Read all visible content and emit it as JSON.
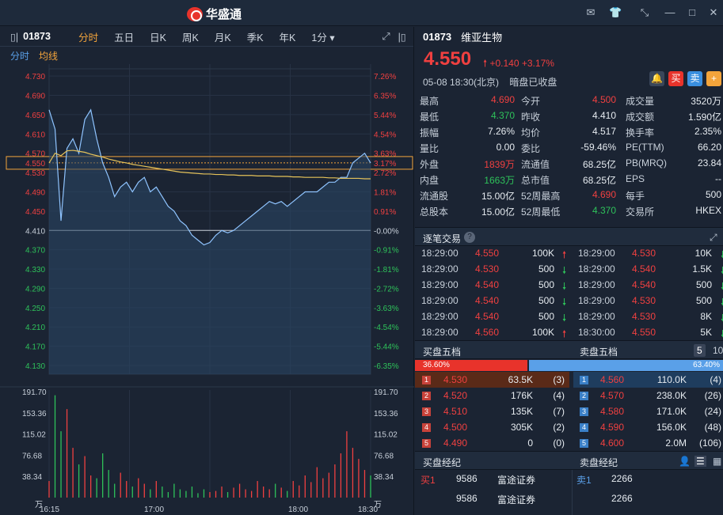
{
  "window": {
    "brand": "华盛通"
  },
  "toolbar": {
    "symbol": "01873",
    "tabs": [
      "分时",
      "五日",
      "日K",
      "周K",
      "月K",
      "季K",
      "年K"
    ],
    "interval": "1分"
  },
  "subtabs": [
    "分时",
    "均线"
  ],
  "stock": {
    "code": "01873",
    "name": "维亚生物",
    "price": "4.550",
    "change": "+0.140",
    "change_pct": "+3.17%",
    "time": "05-08 18:30(北京)",
    "status": "暗盘已收盘",
    "buy_label": "买",
    "sell_label": "卖"
  },
  "stats": [
    [
      "最高",
      "4.690",
      "r",
      "今开",
      "4.500",
      "r",
      "成交量",
      "3520万",
      "w"
    ],
    [
      "最低",
      "4.370",
      "g",
      "昨收",
      "4.410",
      "w",
      "成交额",
      "1.590亿",
      "w"
    ],
    [
      "振幅",
      "7.26%",
      "w",
      "均价",
      "4.517",
      "w",
      "换手率",
      "2.35%",
      "w"
    ],
    [
      "量比",
      "0.00",
      "w",
      "委比",
      "-59.46%",
      "w",
      "PE(TTM)",
      "66.20",
      "w"
    ],
    [
      "外盘",
      "1839万",
      "r",
      "流通值",
      "68.25亿",
      "w",
      "PB(MRQ)",
      "23.84",
      "w"
    ],
    [
      "内盘",
      "1663万",
      "g",
      "总市值",
      "68.25亿",
      "w",
      "EPS",
      "--",
      "w"
    ],
    [
      "流通股",
      "15.00亿",
      "w",
      "52周最高",
      "4.690",
      "r",
      "每手",
      "500",
      "w"
    ],
    [
      "总股本",
      "15.00亿",
      "w",
      "52周最低",
      "4.370",
      "g",
      "交易所",
      "HKEX",
      "w"
    ]
  ],
  "ticks_title": "逐笔交易",
  "ticks": [
    [
      "18:29:00",
      "4.550",
      "100K",
      "up",
      "18:29:00",
      "4.530",
      "10K",
      "down"
    ],
    [
      "18:29:00",
      "4.530",
      "500",
      "down",
      "18:29:00",
      "4.540",
      "1.5K",
      "down"
    ],
    [
      "18:29:00",
      "4.540",
      "500",
      "down",
      "18:29:00",
      "4.540",
      "500",
      "down"
    ],
    [
      "18:29:00",
      "4.540",
      "500",
      "down",
      "18:29:00",
      "4.530",
      "500",
      "down"
    ],
    [
      "18:29:00",
      "4.540",
      "500",
      "down",
      "18:29:00",
      "4.530",
      "8K",
      "down"
    ],
    [
      "18:29:00",
      "4.560",
      "100K",
      "up",
      "18:30:00",
      "4.550",
      "5K",
      "down"
    ]
  ],
  "book": {
    "buy_title": "买盘五档",
    "sell_title": "卖盘五档",
    "depth": "5",
    "depth2": "10",
    "buy_pct": "36.60%",
    "sell_pct": "63.40%",
    "buy_ratio": 0.366,
    "bids": [
      [
        "1",
        "4.530",
        "63.5K",
        "(3)"
      ],
      [
        "2",
        "4.520",
        "176K",
        "(4)"
      ],
      [
        "3",
        "4.510",
        "135K",
        "(7)"
      ],
      [
        "4",
        "4.500",
        "305K",
        "(2)"
      ],
      [
        "5",
        "4.490",
        "0",
        "(0)"
      ]
    ],
    "asks": [
      [
        "1",
        "4.560",
        "110.0K",
        "(4)"
      ],
      [
        "2",
        "4.570",
        "238.0K",
        "(26)"
      ],
      [
        "3",
        "4.580",
        "171.0K",
        "(24)"
      ],
      [
        "4",
        "4.590",
        "156.0K",
        "(48)"
      ],
      [
        "5",
        "4.600",
        "2.0M",
        "(106)"
      ]
    ]
  },
  "brokers": {
    "buy_title": "买盘经纪",
    "sell_title": "卖盘经纪",
    "buy_label": "买1",
    "sell_label": "卖1",
    "buy": [
      [
        "9586",
        "富途证券"
      ],
      [
        "9586",
        "富途证券"
      ]
    ],
    "sell": [
      [
        "2266"
      ],
      [
        "2266"
      ]
    ]
  },
  "chart_data": {
    "type": "line",
    "price_axis": {
      "left": [
        "4.730",
        "4.690",
        "4.650",
        "4.610",
        "4.570",
        "4.550",
        "4.530",
        "4.490",
        "4.450",
        "4.410",
        "4.370",
        "4.330",
        "4.290",
        "4.250",
        "4.210",
        "4.170",
        "4.130"
      ],
      "right": [
        "7.26%",
        "6.35%",
        "5.44%",
        "4.54%",
        "3.63%",
        "3.17%",
        "2.72%",
        "1.81%",
        "0.91%",
        "-0.00%",
        "-0.91%",
        "-1.81%",
        "-2.72%",
        "-3.63%",
        "-4.54%",
        "-5.44%",
        "-6.35%"
      ]
    },
    "ylim": [
      4.112,
      4.745
    ],
    "prev_close": 4.41,
    "current": 4.55,
    "volume_axis": [
      "191.70",
      "153.36",
      "115.02",
      "76.68",
      "38.34",
      "万"
    ],
    "x_labels": [
      "16:15",
      "17:00",
      "18:00",
      "18:30"
    ],
    "price": [
      4.66,
      4.62,
      4.43,
      4.58,
      4.6,
      4.57,
      4.64,
      4.66,
      4.6,
      4.55,
      4.52,
      4.48,
      4.5,
      4.51,
      4.49,
      4.51,
      4.52,
      4.49,
      4.5,
      4.48,
      4.46,
      4.45,
      4.43,
      4.42,
      4.4,
      4.39,
      4.38,
      4.385,
      4.4,
      4.41,
      4.405,
      4.41,
      4.42,
      4.43,
      4.44,
      4.45,
      4.46,
      4.47,
      4.465,
      4.47,
      4.46,
      4.47,
      4.48,
      4.49,
      4.49,
      4.49,
      4.5,
      4.51,
      4.51,
      4.52,
      4.52,
      4.55,
      4.56,
      4.57,
      4.55
    ],
    "avg": [
      4.55,
      4.57,
      4.565,
      4.575,
      4.576,
      4.574,
      4.572,
      4.568,
      4.565,
      4.562,
      4.558,
      4.555,
      4.552,
      4.55,
      4.547,
      4.545,
      4.543,
      4.541,
      4.539,
      4.537,
      4.535,
      4.533,
      4.531,
      4.53,
      4.529,
      4.528,
      4.527,
      4.527,
      4.526,
      4.526,
      4.525,
      4.525,
      4.524,
      4.524,
      4.524,
      4.523,
      4.523,
      4.523,
      4.522,
      4.522,
      4.522,
      4.521,
      4.521,
      4.52,
      4.52,
      4.52,
      4.52,
      4.519,
      4.519,
      4.518,
      4.518,
      4.518,
      4.518,
      4.517,
      4.517
    ],
    "volume": [
      30,
      185,
      120,
      160,
      90,
      60,
      75,
      40,
      35,
      80,
      50,
      25,
      45,
      30,
      20,
      35,
      25,
      15,
      30,
      20,
      10,
      25,
      15,
      12,
      20,
      8,
      15,
      10,
      12,
      20,
      10,
      18,
      25,
      15,
      12,
      30,
      20,
      15,
      25,
      18,
      12,
      30,
      22,
      40,
      28,
      55,
      35,
      45,
      60,
      80,
      120,
      90,
      70,
      50,
      40
    ]
  }
}
